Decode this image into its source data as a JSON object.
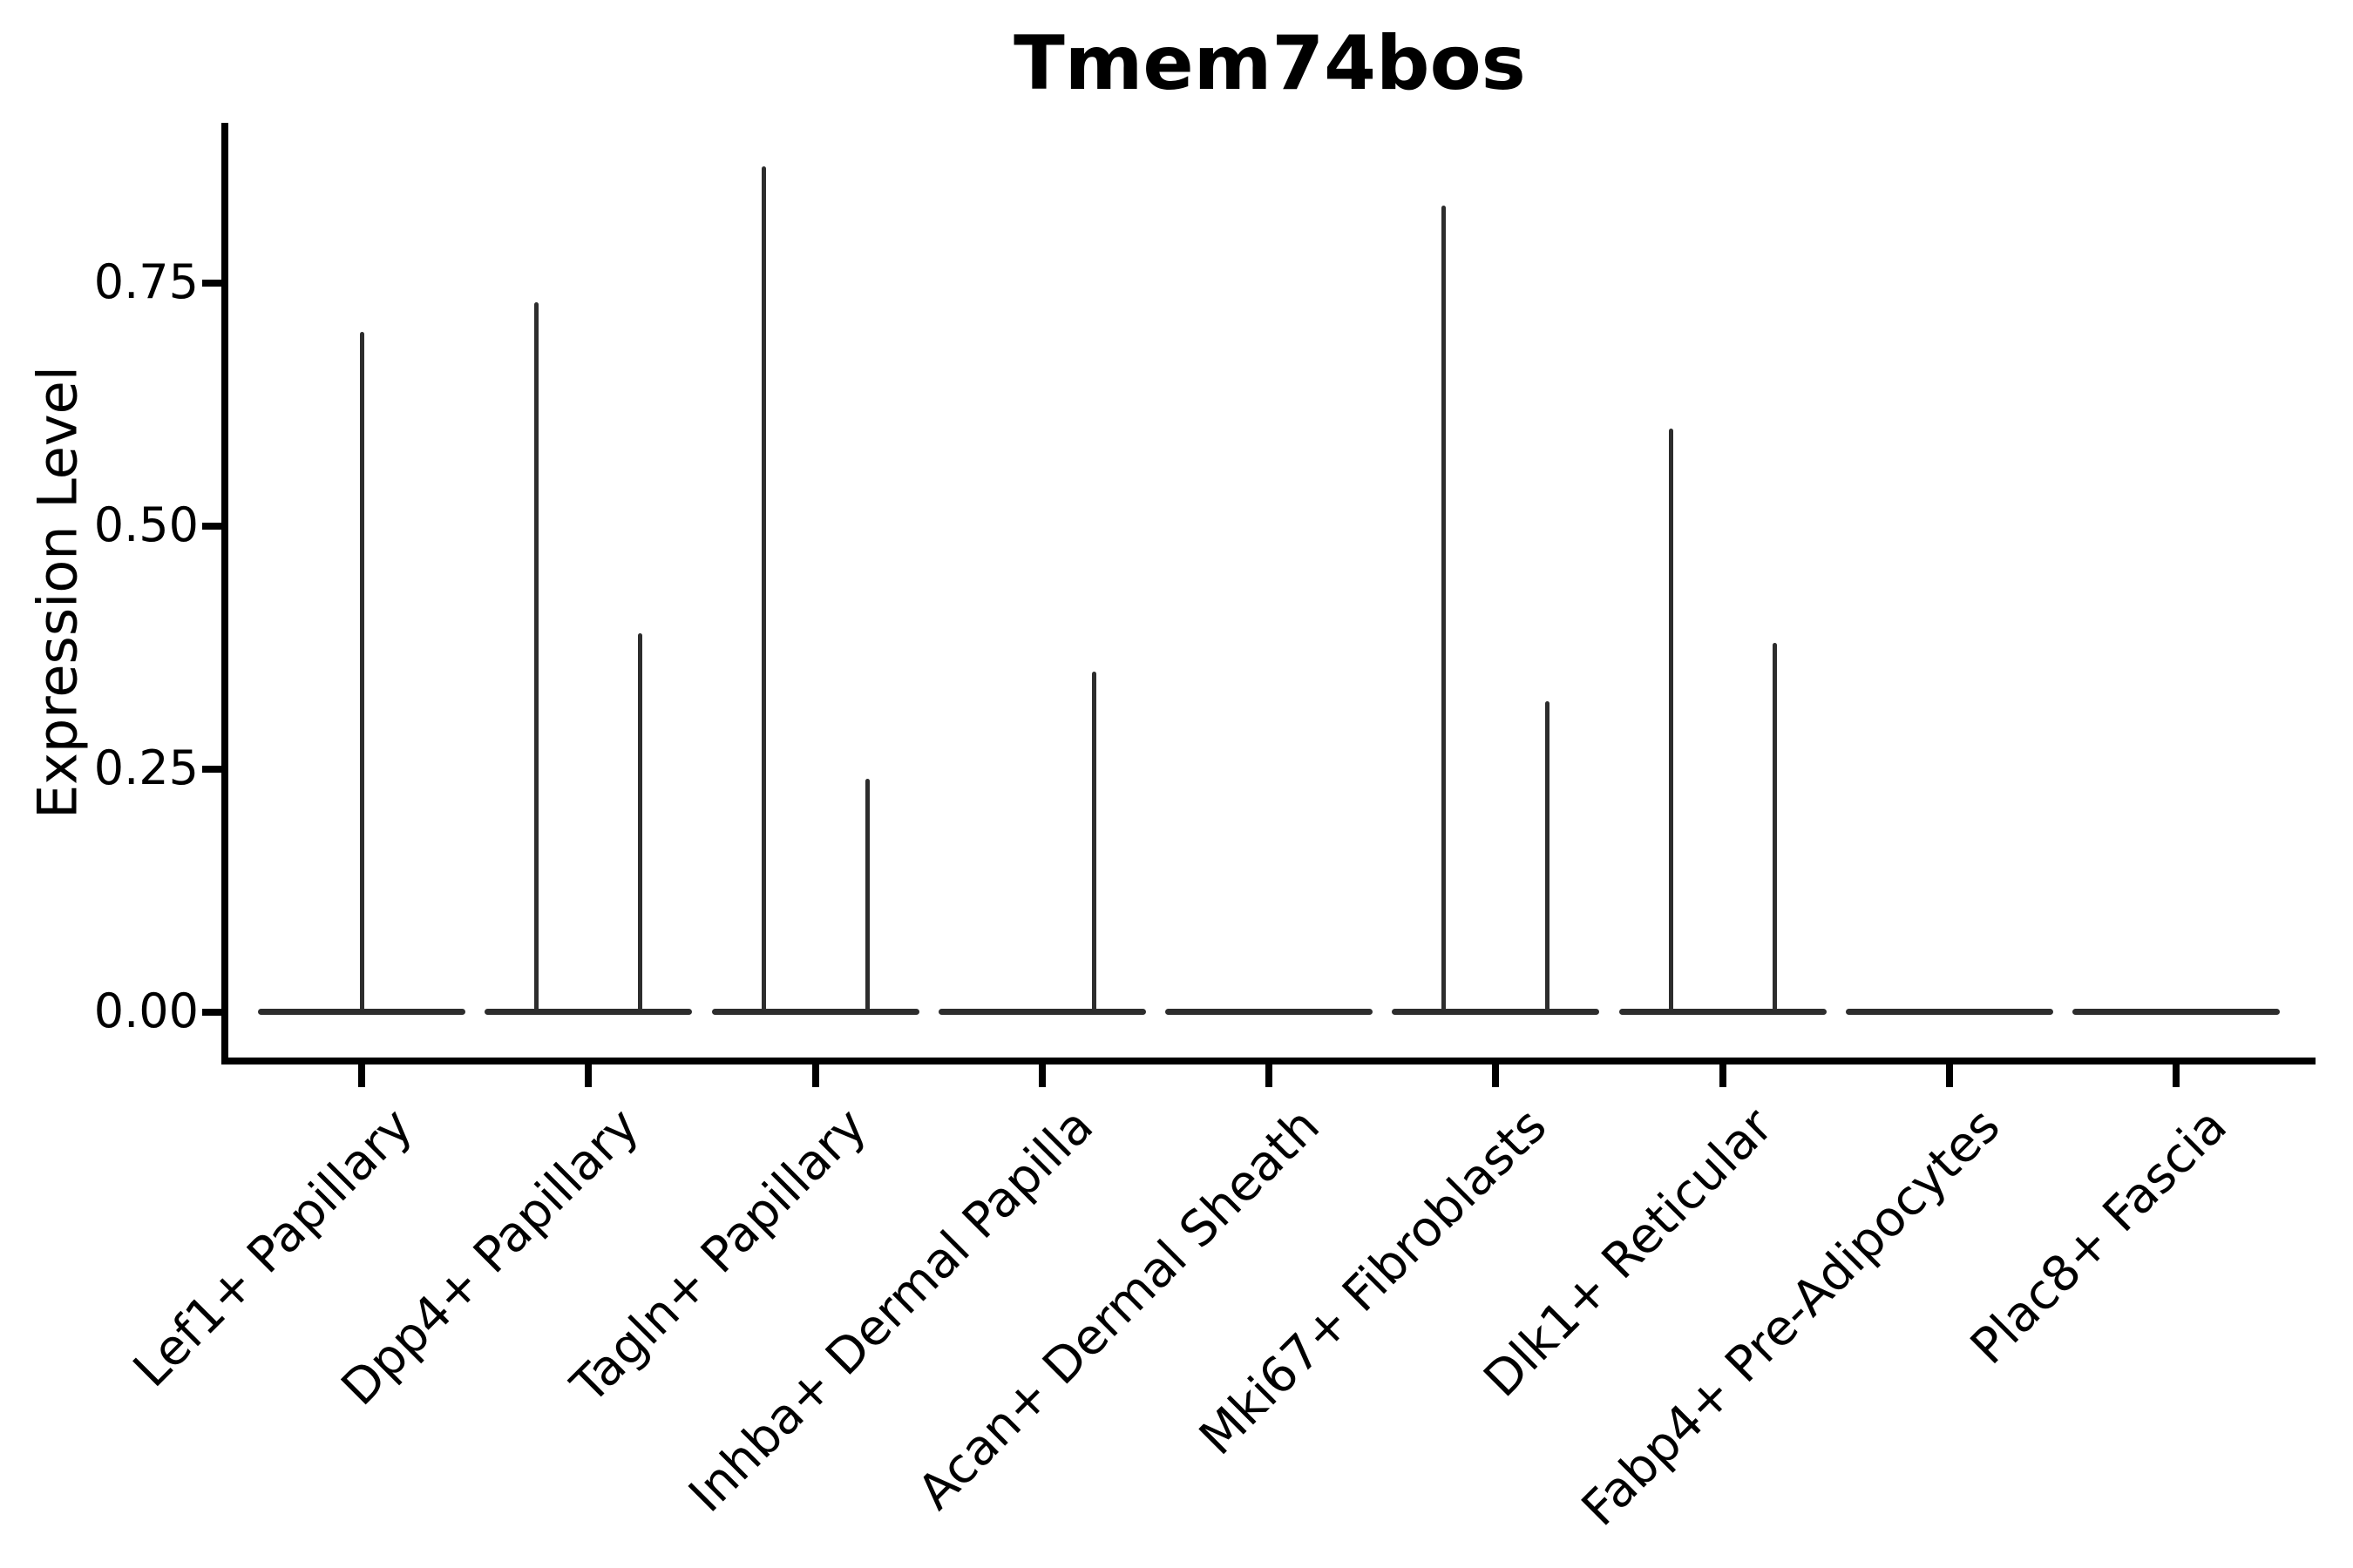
{
  "title": "Tmem74bos",
  "y_axis": {
    "label": "Expression Level",
    "ticks": [
      {
        "label": "0.00",
        "value": 0
      },
      {
        "label": "0.25",
        "value": 0.25
      },
      {
        "label": "0.50",
        "value": 0.5
      },
      {
        "label": "0.75",
        "value": 0.75
      }
    ]
  },
  "chart_data": {
    "type": "violin",
    "title": "Tmem74bos",
    "xlabel": "",
    "ylabel": "Expression Level",
    "ylim": [
      0,
      0.92
    ],
    "yticks": [
      0,
      0.25,
      0.5,
      0.75
    ],
    "grid": false,
    "legend_position": "none",
    "categories": [
      "Lef1+ Papillary",
      "Dpp4+ Papillary",
      "Tagln+ Papillary",
      "Inhba+ Dermal Papilla",
      "Acan+ Dermal Sheath",
      "Mki67+ Fibroblasts",
      "Dlk1+ Reticular",
      "Fabp4+ Pre-Adipocytes",
      "Plac8+ Fascia"
    ],
    "violins": [
      {
        "category": "Lef1+ Papillary",
        "spikes": [
          {
            "dodge": 0,
            "max": 0.7
          }
        ]
      },
      {
        "category": "Dpp4+ Papillary",
        "spikes": [
          {
            "dodge": -1,
            "max": 0.73
          },
          {
            "dodge": 1,
            "max": 0.39
          }
        ]
      },
      {
        "category": "Tagln+ Papillary",
        "spikes": [
          {
            "dodge": -1,
            "max": 0.87
          },
          {
            "dodge": 1,
            "max": 0.24
          }
        ]
      },
      {
        "category": "Inhba+ Dermal Papilla",
        "spikes": [
          {
            "dodge": 1,
            "max": 0.35
          }
        ]
      },
      {
        "category": "Acan+ Dermal Sheath",
        "spikes": []
      },
      {
        "category": "Mki67+ Fibroblasts",
        "spikes": [
          {
            "dodge": -1,
            "max": 0.83
          },
          {
            "dodge": 1,
            "max": 0.32
          }
        ]
      },
      {
        "category": "Dlk1+ Reticular",
        "spikes": [
          {
            "dodge": -1,
            "max": 0.6
          },
          {
            "dodge": 1,
            "max": 0.38
          }
        ]
      },
      {
        "category": "Fabp4+ Pre-Adipocytes",
        "spikes": []
      },
      {
        "category": "Plac8+ Fascia",
        "spikes": []
      }
    ],
    "note": "Each violin is collapsed into a flat bar at expression 0 (bulk of cells) with a thin density spike rising to the max expression; dodge -1 = left half of category, 1 = right half, 0 = full-width centered violin. Categories Acan+ Dermal Sheath, Fabp4+ Pre-Adipocytes and Plac8+ Fascia show no nonzero expression.",
    "colors": {
      "violin_stroke": "#2d2d2d",
      "axis": "#000000",
      "text": "#000000",
      "background": "#ffffff"
    }
  }
}
